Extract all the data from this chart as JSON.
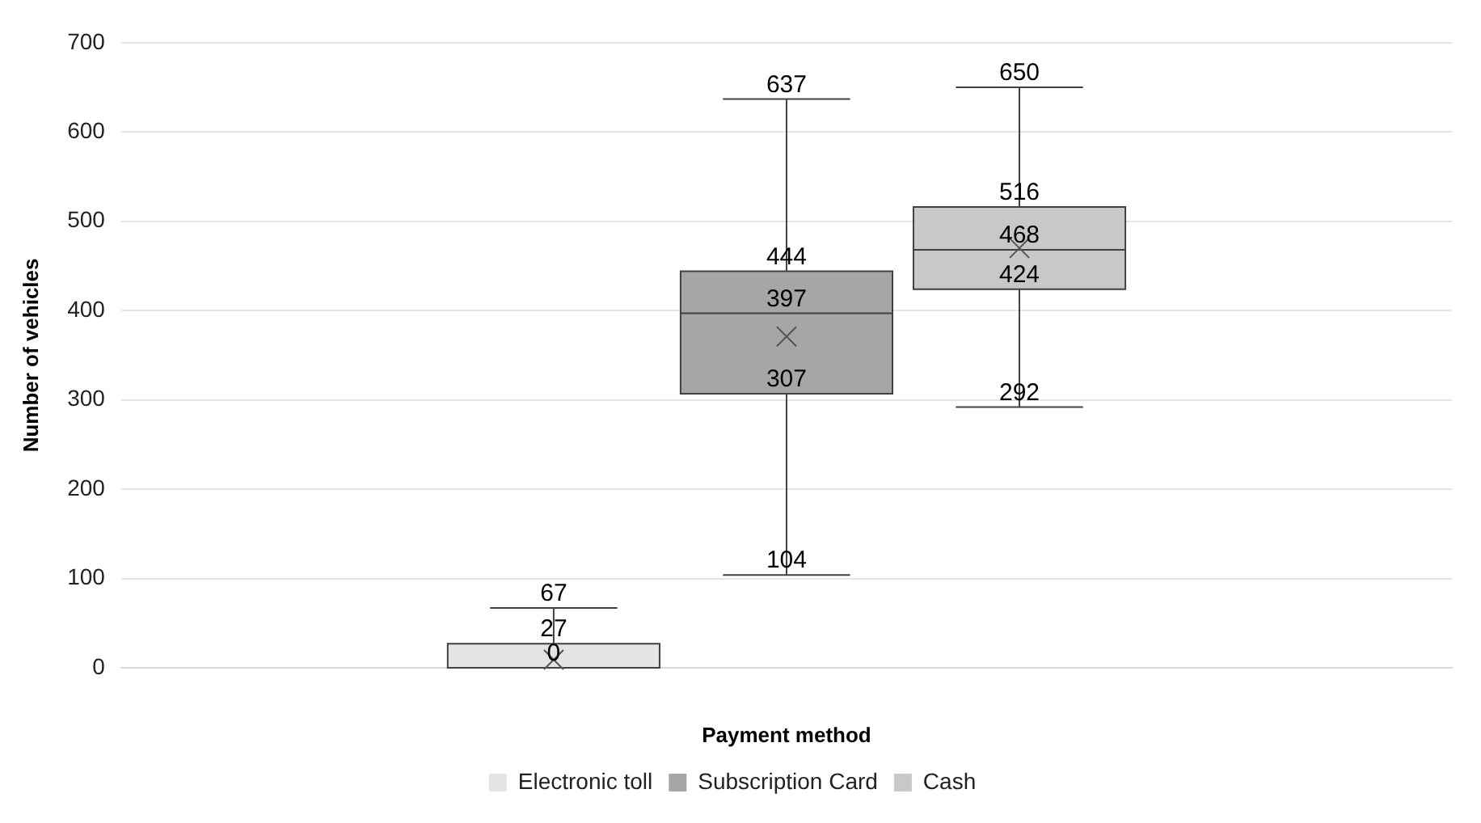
{
  "chart_data": {
    "type": "box",
    "xlabel": "Payment method",
    "ylabel": "Number of vehicles",
    "categories": [
      null
    ],
    "series": [
      {
        "name": "Electronic toll",
        "color": "#e4e4e4",
        "boxes": [
          {
            "low": 0,
            "q1": 0,
            "median": 0,
            "q3": 27,
            "high": 67,
            "mean": 9
          }
        ]
      },
      {
        "name": "Subscription Card",
        "color": "#a6a6a6",
        "boxes": [
          {
            "low": 104,
            "q1": 307,
            "median": 397,
            "q3": 444,
            "high": 637,
            "mean": 371
          }
        ]
      },
      {
        "name": "Cash",
        "color": "#c8c8c8",
        "boxes": [
          {
            "low": 292,
            "q1": 424,
            "median": 468,
            "q3": 516,
            "high": 650,
            "mean": 470
          }
        ]
      }
    ],
    "annotations": [
      {
        "text": "0",
        "y": 0
      },
      {
        "text": "27",
        "y": 27
      },
      {
        "text": "67",
        "y": 67
      },
      {
        "text": "104",
        "y": 104
      },
      {
        "text": "307",
        "y": 307
      },
      {
        "text": "397",
        "y": 397
      },
      {
        "text": "444",
        "y": 444
      },
      {
        "text": "637",
        "y": 637
      },
      {
        "text": "292",
        "y": 292
      },
      {
        "text": "424",
        "y": 424
      },
      {
        "text": "468",
        "y": 468
      },
      {
        "text": "516",
        "y": 516
      },
      {
        "text": "650",
        "y": 650
      }
    ],
    "ylim": [
      0,
      700
    ],
    "yticks": [
      0,
      100,
      200,
      300,
      400,
      500,
      600,
      700
    ],
    "grid": "y",
    "legend": "bottom"
  }
}
